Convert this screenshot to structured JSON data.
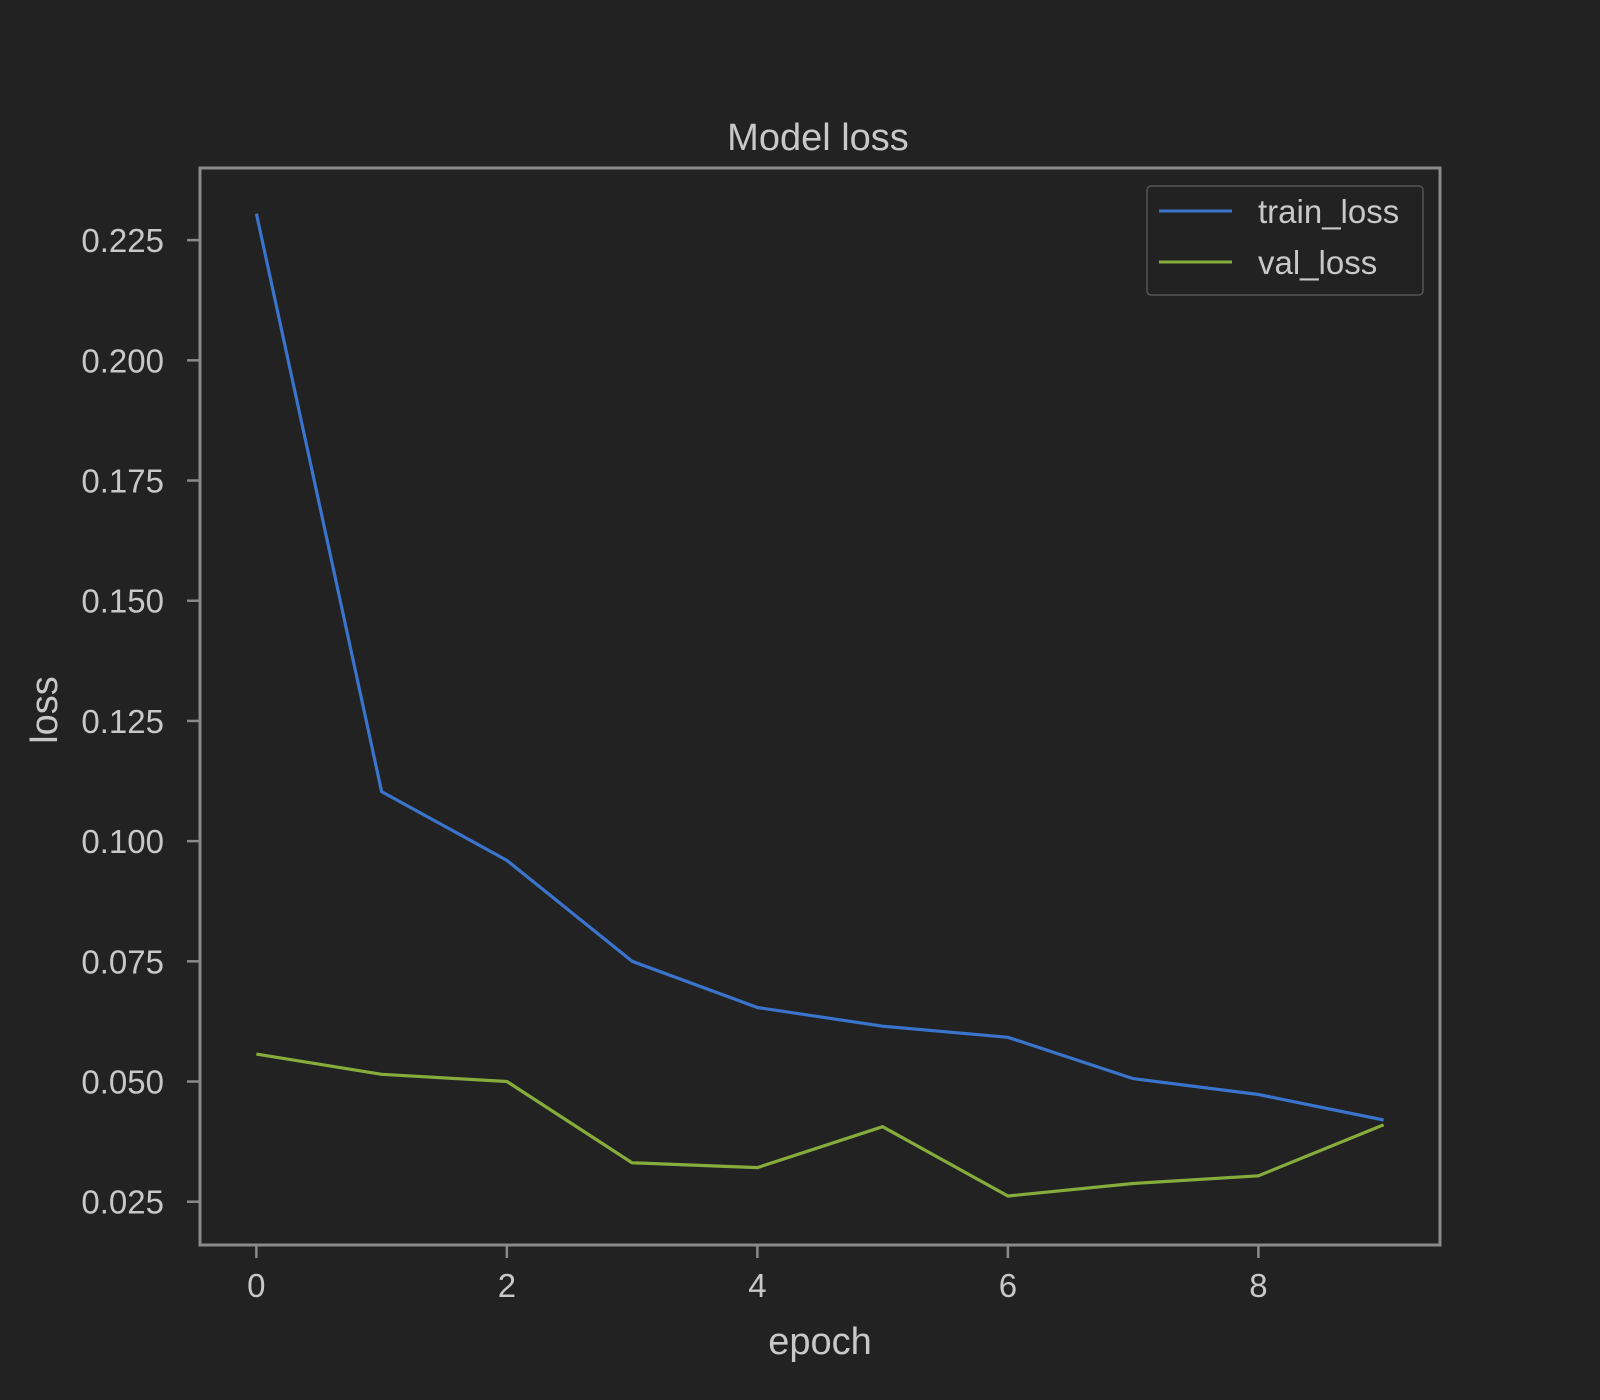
{
  "chart_data": {
    "type": "line",
    "title": "Model loss",
    "xlabel": "epoch",
    "ylabel": "loss",
    "x": [
      0,
      1,
      2,
      3,
      4,
      5,
      6,
      7,
      8,
      9
    ],
    "xlim": [
      -0.45,
      9.45
    ],
    "ylim": [
      0.016,
      0.24
    ],
    "xticks": [
      0,
      2,
      4,
      6,
      8
    ],
    "xtick_labels": [
      "0",
      "2",
      "4",
      "6",
      "8"
    ],
    "yticks": [
      0.025,
      0.05,
      0.075,
      0.1,
      0.125,
      0.15,
      0.175,
      0.2,
      0.225
    ],
    "ytick_labels": [
      "0.025",
      "0.050",
      "0.075",
      "0.100",
      "0.125",
      "0.150",
      "0.175",
      "0.200",
      "0.225"
    ],
    "grid": false,
    "legend_position": "top-right",
    "series": [
      {
        "name": "train_loss",
        "color": "#3a74cc",
        "values": [
          0.2305,
          0.1103,
          0.096,
          0.075,
          0.0654,
          0.0615,
          0.0592,
          0.0506,
          0.0473,
          0.042
        ]
      },
      {
        "name": "val_loss",
        "color": "#86ad3c",
        "values": [
          0.0557,
          0.0515,
          0.05,
          0.0331,
          0.0321,
          0.0406,
          0.0262,
          0.0288,
          0.0304,
          0.041
        ]
      }
    ],
    "colors": {
      "background": "#222222",
      "frame": "#8a8a8a",
      "text": "#c8c8c8"
    }
  }
}
